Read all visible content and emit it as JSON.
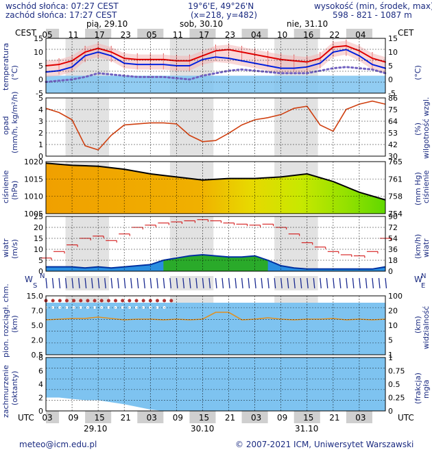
{
  "header": {
    "sunrise": "wschód słońca: 07:27 CEST",
    "sunset": "zachód słońca: 17:27 CEST",
    "coords": "19°6'E, 49°26'N",
    "grid": "(x=218, y=482)",
    "alt_title": "wysokość (min, środek, max)",
    "alt_values": "598 - 821 - 1087 m"
  },
  "top_axis": {
    "left_label": "CEST",
    "right_label": "CET",
    "days": [
      "pią, 29.10",
      "sob, 30.10",
      "nie, 31.10"
    ],
    "hours": [
      "05",
      "11",
      "17",
      "23",
      "05",
      "11",
      "17",
      "23",
      "04",
      "10",
      "16",
      "22",
      "04"
    ]
  },
  "bottom_axis": {
    "left_label": "UTC",
    "right_label": "UTC",
    "hours": [
      "03",
      "09",
      "15",
      "21",
      "03",
      "09",
      "15",
      "21",
      "03",
      "09",
      "15",
      "21",
      "03"
    ],
    "dates": [
      "29.10",
      "30.10",
      "31.10"
    ]
  },
  "panels": {
    "temperature": {
      "left": "temperatura",
      "left_unit": "(°C)",
      "right_unit": "(°C)",
      "ticks": [
        "15",
        "10",
        "5",
        "0",
        "-5"
      ]
    },
    "precip": {
      "left": "opad",
      "left_unit": "(mm/h, kg/m²/h)",
      "right": "wilgotność wzgl.",
      "right_unit": "(%)",
      "ticks_left": [
        "5",
        "4",
        "3",
        "2",
        "1",
        "0"
      ],
      "ticks_right": [
        "86",
        "75",
        "64",
        "53",
        "42",
        "30"
      ]
    },
    "pressure": {
      "left": "ciśnienie",
      "left_unit": "(hPa)",
      "right": "ciśnienie",
      "right_unit": "(mm Hg)",
      "ticks_left": [
        "1020",
        "1015",
        "1010",
        "1005"
      ],
      "ticks_right": [
        "765",
        "761",
        "758",
        "754"
      ]
    },
    "wind": {
      "left": "wiatr",
      "left_unit": "(m/s)",
      "right": "wiatr",
      "right_unit": "(km/h)",
      "ticks_left": [
        "25",
        "20",
        "15",
        "10",
        "5",
        "0"
      ],
      "ticks_right": [
        "90",
        "72",
        "54",
        "36",
        "18",
        "0"
      ]
    },
    "winddir": {
      "left": "W",
      "left_sub": "S",
      "right": "N",
      "right_sub": "E"
    },
    "visibility": {
      "left": "pion. rozciągł. chm.",
      "left_unit": "(km)",
      "right": "widzialność",
      "right_unit": "(km)",
      "ticks_left": [
        "15.0",
        "7.0",
        "5.0",
        "2.0",
        "0.5"
      ],
      "ticks_right": [
        "100",
        "20",
        "10",
        "5",
        "1"
      ]
    },
    "clouds": {
      "left": "zachmurzenie",
      "left_unit": "(oktanty)",
      "right": "mgła",
      "right_unit": "(frakcja)",
      "ticks_left": [
        "8",
        "6",
        "4",
        "2",
        "0"
      ],
      "ticks_right": [
        "1",
        "0.75",
        "0.5",
        "0.25",
        "0"
      ]
    }
  },
  "footer": {
    "email": "meteo@icm.edu.pl",
    "copyright": "© 2007-2021 ICM, Uniwersytet Warszawski"
  },
  "colors": {
    "day_shade": "#e2e2e2",
    "night": "#ffffff",
    "sky_blue": "#7ec3f0",
    "temp_red": "#e00000",
    "temp_blue": "#0020e0",
    "humidity": "#d04010",
    "orange_pressure": "#f0a000",
    "wind_dark": "#0030a0"
  },
  "chart_data": [
    {
      "type": "line",
      "name_of_panel": "temperatura",
      "x": [
        0,
        3,
        6,
        9,
        12,
        15,
        18,
        21,
        24,
        27,
        30,
        33,
        36,
        39,
        42,
        45,
        48,
        51,
        54,
        57,
        60,
        63,
        66,
        69,
        72,
        75,
        78
      ],
      "ylim": [
        -7,
        15
      ],
      "series": [
        {
          "values": [
            4,
            4.5,
            6,
            9.5,
            11,
            9.5,
            7,
            6.5,
            6.5,
            6.5,
            6,
            6,
            8,
            10,
            10.5,
            9.5,
            8.5,
            7.5,
            6.5,
            6,
            5.5,
            7,
            11.5,
            12,
            10,
            7,
            5.5
          ],
          "color": "#e00000"
        },
        {
          "values": [
            1.5,
            2,
            3.5,
            8,
            9.5,
            8,
            5,
            4.5,
            4.5,
            4.5,
            4,
            4,
            6.5,
            7.5,
            7,
            6,
            5,
            4,
            3,
            3,
            3.5,
            5,
            9.5,
            10.5,
            8,
            4.5,
            3
          ],
          "color": "#0020e0"
        },
        {
          "values": [
            -2.5,
            -2,
            -1.5,
            -0.5,
            1,
            0.5,
            0,
            -0.5,
            -0.5,
            -0.5,
            -1,
            -1.5,
            0,
            1,
            2,
            2.5,
            2,
            1.5,
            1,
            1,
            1,
            2,
            3,
            3.5,
            3,
            2.5,
            1
          ],
          "color": "#7060c0"
        }
      ]
    },
    {
      "type": "line",
      "name_of_panel": "wilgotność wzgl.",
      "x": [
        0,
        3,
        6,
        9,
        12,
        15,
        18,
        21,
        24,
        27,
        30,
        33,
        36,
        39,
        42,
        45,
        48,
        51,
        54,
        57,
        60,
        63,
        66,
        69,
        72,
        75,
        78
      ],
      "ylim": [
        30,
        86
      ],
      "series": [
        {
          "values": [
            76,
            72,
            65,
            40,
            36,
            50,
            60,
            61,
            62,
            62,
            61,
            50,
            44,
            45,
            52,
            60,
            65,
            67,
            70,
            76,
            78,
            60,
            54,
            75,
            80,
            83,
            80
          ],
          "color": "#d04010"
        }
      ]
    },
    {
      "type": "area",
      "name_of_panel": "ciśnienie",
      "x": [
        0,
        6,
        12,
        18,
        24,
        30,
        36,
        42,
        48,
        54,
        60,
        66,
        72,
        78
      ],
      "ylim": [
        1005,
        1022
      ],
      "series": [
        {
          "values": [
            1021.5,
            1020.8,
            1020.5,
            1019.5,
            1018,
            1017,
            1016,
            1016.5,
            1016.5,
            1017,
            1018,
            1015.5,
            1012,
            1009.5
          ],
          "color": "#000000"
        }
      ]
    },
    {
      "type": "line",
      "name_of_panel": "wiatr",
      "x": [
        0,
        3,
        6,
        9,
        12,
        15,
        18,
        21,
        24,
        27,
        30,
        33,
        36,
        39,
        42,
        45,
        48,
        51,
        54,
        57,
        60,
        63,
        66,
        69,
        72,
        75,
        78
      ],
      "ylim": [
        0,
        25
      ],
      "series": [
        {
          "values": [
            6,
            9,
            12,
            15,
            16,
            14,
            17,
            20,
            21,
            22,
            22.5,
            23,
            23.5,
            23,
            22,
            21.5,
            21,
            21.5,
            20,
            17,
            13,
            11,
            9,
            7.5,
            7,
            9,
            15
          ],
          "color": "#e00000"
        },
        {
          "values": [
            2,
            2,
            2,
            1.5,
            2,
            1.5,
            2,
            2.5,
            3,
            5,
            6,
            7,
            7.5,
            7,
            6.5,
            6.5,
            7,
            5,
            2.5,
            1.5,
            1,
            1,
            1,
            1,
            1,
            1,
            2
          ],
          "color": "#0030a0"
        }
      ]
    },
    {
      "type": "area",
      "name_of_panel": "zachmurzenie",
      "x": [
        0,
        3,
        6,
        9,
        12,
        15,
        18,
        21,
        24,
        27,
        30,
        33,
        36,
        39,
        42,
        45,
        48,
        51,
        54,
        57,
        60,
        63,
        66,
        69,
        72,
        75,
        78
      ],
      "ylim": [
        0,
        8
      ],
      "series": [
        {
          "values": [
            2,
            2,
            1.8,
            1.6,
            1.6,
            1.3,
            1.0,
            0.6,
            0.2,
            0,
            0,
            0,
            0,
            0,
            0,
            0,
            0,
            0,
            0,
            0,
            0,
            0,
            0,
            0,
            0,
            0,
            0
          ],
          "color": "#ffffff"
        }
      ]
    }
  ]
}
